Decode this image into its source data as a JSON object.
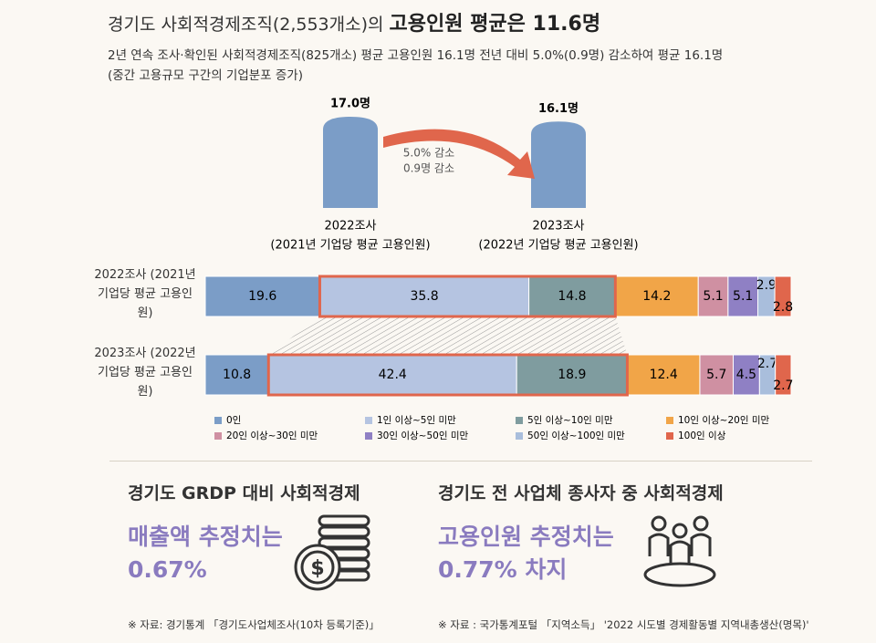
{
  "title": {
    "prefix": "경기도 사회적경제조직(2,553개소)의",
    "emphasis": "고용인원 평균은 11.6명"
  },
  "subtitle": [
    "2년 연속 조사·확인된 사회적경제조직(825개소) 평균 고용인원 16.1명 전년 대비 5.0%(0.9명) 감소하여 평균 16.1명",
    "(중간 고용규모 구간의 기업분포 증가)"
  ],
  "chart_data": [
    {
      "type": "bar",
      "categories": [
        "2022조사",
        "2023조사"
      ],
      "category_notes": [
        "(2021년 기업당 평균 고용인원)",
        "(2022년 기업당 평균 고용인원)"
      ],
      "values": [
        17.0,
        16.1
      ],
      "value_labels": [
        "17.0명",
        "16.1명"
      ],
      "color": "#7b9dc7",
      "annotation": [
        "5.0% 감소",
        "0.9명 감소"
      ],
      "arrow_color": "#e0664c"
    },
    {
      "type": "stacked-hbar",
      "categories": [
        "2022조사 (2021년 기업당 평균 고용인원)",
        "2023조사 (2022년 기업당 평균 고용인원)"
      ],
      "series": [
        {
          "name": "0인",
          "color": "#7b9dc7",
          "values": [
            19.6,
            10.8
          ]
        },
        {
          "name": "1인 이상~5인 미만",
          "color": "#b5c4e1",
          "values": [
            35.8,
            42.4
          ],
          "outlined": true
        },
        {
          "name": "5인 이상~10인 미만",
          "color": "#7f9c9f",
          "values": [
            14.8,
            18.9
          ],
          "outlined": true
        },
        {
          "name": "10인 이상~20인 미만",
          "color": "#f1a548",
          "values": [
            14.2,
            12.4
          ]
        },
        {
          "name": "20인 이상~30인 미만",
          "color": "#cf90a2",
          "values": [
            5.1,
            5.7
          ]
        },
        {
          "name": "30인 이상~50인 미만",
          "color": "#8f80c4",
          "values": [
            5.1,
            4.5
          ]
        },
        {
          "name": "50인 이상~100인 미만",
          "color": "#a9bedc",
          "values": [
            2.9,
            2.7
          ]
        },
        {
          "name": "100인 이상",
          "color": "#e0664c",
          "values": [
            2.8,
            2.7
          ]
        }
      ],
      "outline_color": "#e0664c"
    }
  ],
  "panels": [
    {
      "heading": "경기도 GRDP 대비 사회적경제",
      "highlight": [
        "매출액 추정치는",
        "0.67%"
      ],
      "source": "※ 자료: 경기통계 「경기도사업체조사(10차 등록기준)」"
    },
    {
      "heading": "경기도 전 사업체 종사자 중 사회적경제",
      "highlight": [
        "고용인원 추정치는",
        "0.77% 차지"
      ],
      "source": "※ 자료 : 국가통계포털 「지역소득」 '2022 시도별 경제활동별 지역내총생산(명목)'"
    }
  ]
}
